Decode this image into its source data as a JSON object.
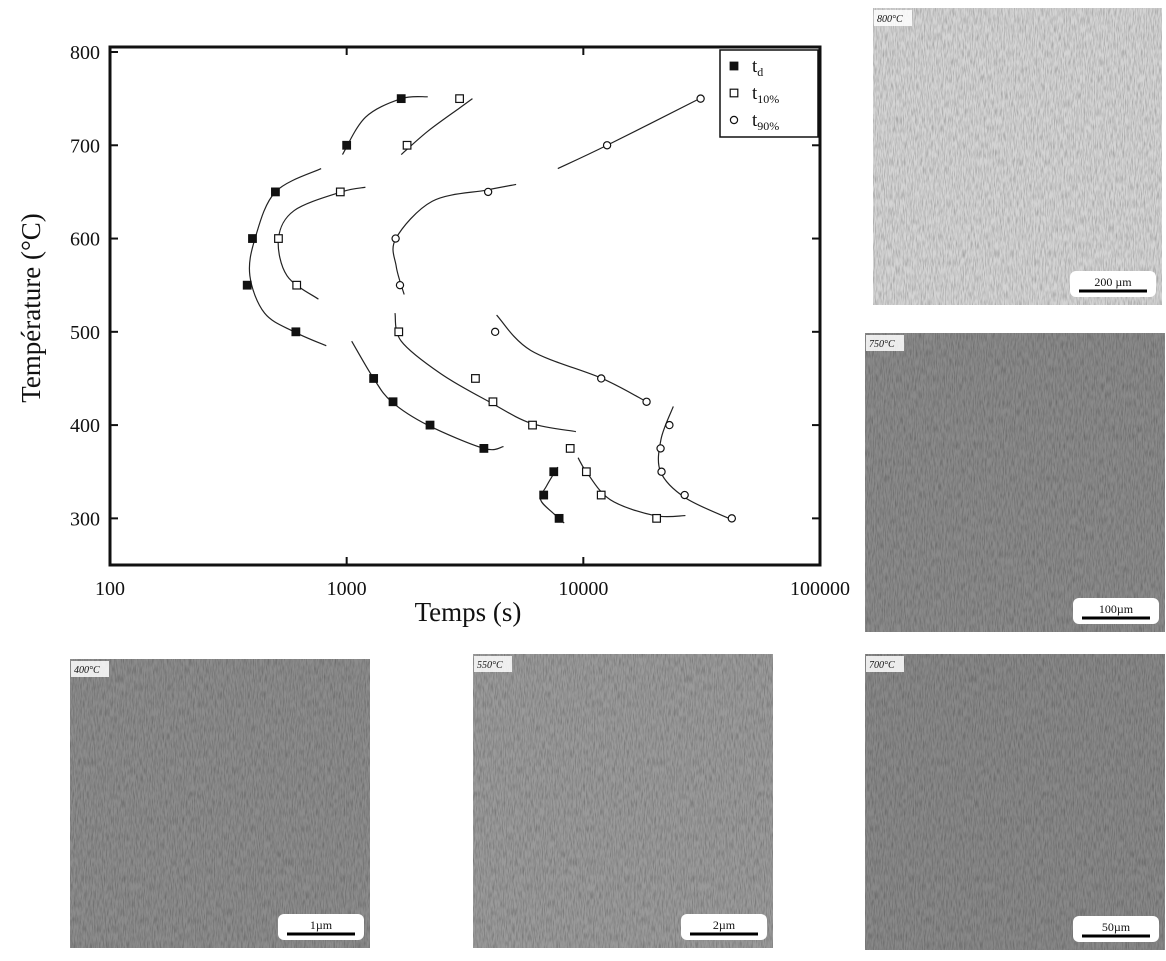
{
  "chart_data": {
    "type": "scatter",
    "xlabel": "Temps (s)",
    "ylabel": "Température (°C)",
    "xscale": "log",
    "xlim": [
      100,
      100000
    ],
    "xticks": [
      100,
      1000,
      10000,
      100000
    ],
    "ylim": [
      250,
      800
    ],
    "yticks": [
      300,
      400,
      500,
      600,
      700,
      800
    ],
    "grid": false,
    "legend": "upper right",
    "series": [
      {
        "name": "td",
        "color": "#111111",
        "marker": "filled-square",
        "x": [
          1700,
          1000,
          500,
          400,
          380,
          610,
          1300,
          1570,
          2250,
          3800,
          7500,
          6800,
          7900
        ],
        "values": [
          750,
          700,
          650,
          600,
          550,
          500,
          450,
          425,
          400,
          375,
          350,
          325,
          300
        ]
      },
      {
        "name": "t10%",
        "color": "#111111",
        "marker": "open-square",
        "x": [
          3000,
          1800,
          940,
          515,
          615,
          1660,
          3500,
          4150,
          6100,
          8800,
          10300,
          11900,
          20400
        ],
        "values": [
          750,
          700,
          650,
          600,
          550,
          500,
          450,
          425,
          400,
          375,
          350,
          325,
          300
        ]
      },
      {
        "name": "t90%",
        "color": "#111111",
        "marker": "open-circle",
        "x": [
          31300,
          12600,
          3960,
          1610,
          1680,
          4240,
          11900,
          18500,
          23100,
          21200,
          21400,
          26800,
          42400
        ],
        "values": [
          750,
          700,
          650,
          600,
          550,
          500,
          450,
          425,
          400,
          375,
          350,
          325,
          300
        ]
      }
    ],
    "curves": [
      {
        "x": [
          960,
          1200,
          1700,
          2200
        ],
        "y": [
          690,
          730,
          750,
          752
        ]
      },
      {
        "x": [
          780,
          500,
          410,
          390,
          450,
          600,
          820
        ],
        "y": [
          675,
          650,
          600,
          560,
          520,
          500,
          485
        ]
      },
      {
        "x": [
          1050,
          1300,
          1550,
          2200,
          3800,
          4600
        ],
        "y": [
          490,
          450,
          425,
          400,
          375,
          377
        ]
      },
      {
        "x": [
          7800,
          7000,
          6600,
          7500,
          8300
        ],
        "y": [
          355,
          335,
          320,
          305,
          295
        ]
      },
      {
        "x": [
          1700,
          2200,
          3000,
          3400
        ],
        "y": [
          690,
          715,
          740,
          750
        ]
      },
      {
        "x": [
          760,
          560,
          515,
          600,
          950,
          1200
        ],
        "y": [
          535,
          560,
          600,
          630,
          650,
          655
        ]
      },
      {
        "x": [
          1600,
          1700,
          2500,
          4000,
          6000,
          9300
        ],
        "y": [
          520,
          490,
          455,
          425,
          402,
          393
        ]
      },
      {
        "x": [
          9500,
          10300,
          13000,
          20000,
          27000
        ],
        "y": [
          365,
          350,
          320,
          303,
          303
        ]
      },
      {
        "x": [
          7800,
          12600,
          31000
        ],
        "y": [
          675,
          700,
          750
        ]
      },
      {
        "x": [
          1750,
          1620,
          1614,
          2300,
          3900,
          5200
        ],
        "y": [
          540,
          570,
          600,
          640,
          652,
          658
        ]
      },
      {
        "x": [
          4300,
          6000,
          12000,
          18500
        ],
        "y": [
          518,
          480,
          450,
          425
        ]
      },
      {
        "x": [
          24000,
          21300,
          21200,
          27000,
          43000
        ],
        "y": [
          420,
          385,
          350,
          322,
          298
        ]
      }
    ]
  },
  "micrographs": [
    {
      "label": "800°C",
      "scale": "200 µm",
      "tone": "#d4d4d4"
    },
    {
      "label": "750°C",
      "scale": "100µm",
      "tone": "#8a8a8a"
    },
    {
      "label": "400°C",
      "scale": "1µm",
      "tone": "#8c8c8c"
    },
    {
      "label": "550°C",
      "scale": "2µm",
      "tone": "#9a9a9a"
    },
    {
      "label": "700°C",
      "scale": "50µm",
      "tone": "#888888"
    }
  ]
}
